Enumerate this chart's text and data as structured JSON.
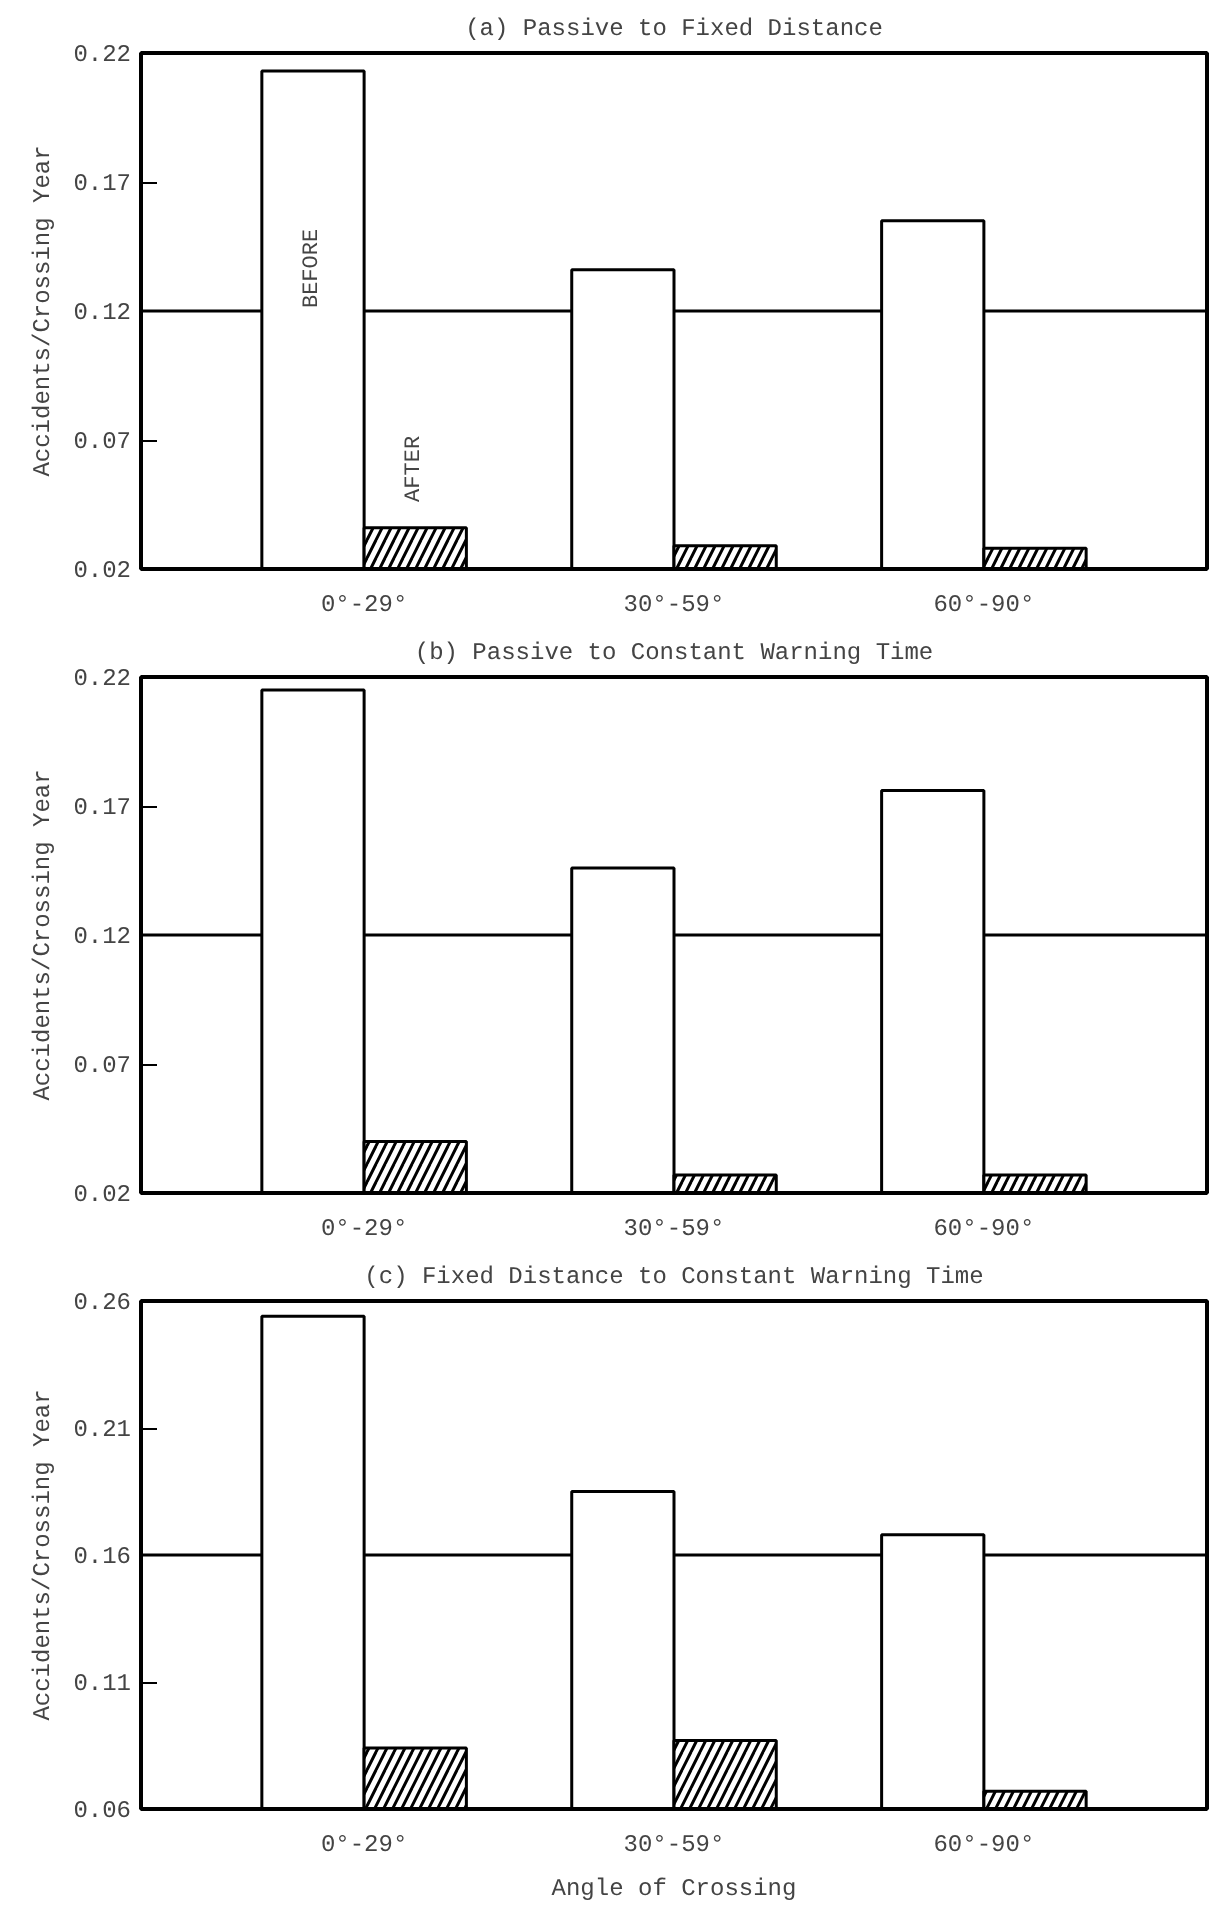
{
  "chart_data": [
    {
      "type": "bar",
      "title": "(a) Passive to Fixed Distance",
      "ylabel": "Accidents/Crossing Year",
      "categories": [
        "0°-29°",
        "30°-59°",
        "60°-90°"
      ],
      "series": [
        {
          "name": "BEFORE",
          "color": "#ffffff",
          "values": [
            0.213,
            0.136,
            0.155
          ]
        },
        {
          "name": "AFTER",
          "color": "#ffffff",
          "values": [
            0.036,
            0.029,
            0.028
          ]
        }
      ],
      "ylim": [
        0.02,
        0.22
      ],
      "yticks": [
        0.02,
        0.07,
        0.12,
        0.17,
        0.22
      ],
      "ref_lines": [
        {
          "axis": "y",
          "value": 0.12
        }
      ],
      "grid": false
    },
    {
      "type": "bar",
      "title": "(b) Passive to Constant Warning Time",
      "ylabel": "Accidents/Crossing Year",
      "categories": [
        "0°-29°",
        "30°-59°",
        "60°-90°"
      ],
      "series": [
        {
          "color": "#ffffff",
          "values": [
            0.215,
            0.146,
            0.176
          ]
        },
        {
          "color": "#ffffff",
          "values": [
            0.04,
            0.027,
            0.027
          ]
        }
      ],
      "ylim": [
        0.02,
        0.22
      ],
      "yticks": [
        0.02,
        0.07,
        0.12,
        0.17,
        0.22
      ],
      "ref_lines": [
        {
          "axis": "y",
          "value": 0.12
        }
      ],
      "grid": false
    },
    {
      "type": "bar",
      "title": "(c) Fixed Distance to Constant Warning Time",
      "xlabel": "Angle of Crossing",
      "ylabel": "Accidents/Crossing Year",
      "categories": [
        "0°-29°",
        "30°-59°",
        "60°-90°"
      ],
      "series": [
        {
          "color": "#ffffff",
          "values": [
            0.254,
            0.185,
            0.168
          ]
        },
        {
          "color": "#ffffff",
          "values": [
            0.084,
            0.087,
            0.067
          ]
        }
      ],
      "ylim": [
        0.06,
        0.26
      ],
      "yticks": [
        0.06,
        0.11,
        0.16,
        0.21,
        0.26
      ],
      "ref_lines": [
        {
          "axis": "y",
          "value": 0.16
        }
      ],
      "grid": false
    }
  ]
}
